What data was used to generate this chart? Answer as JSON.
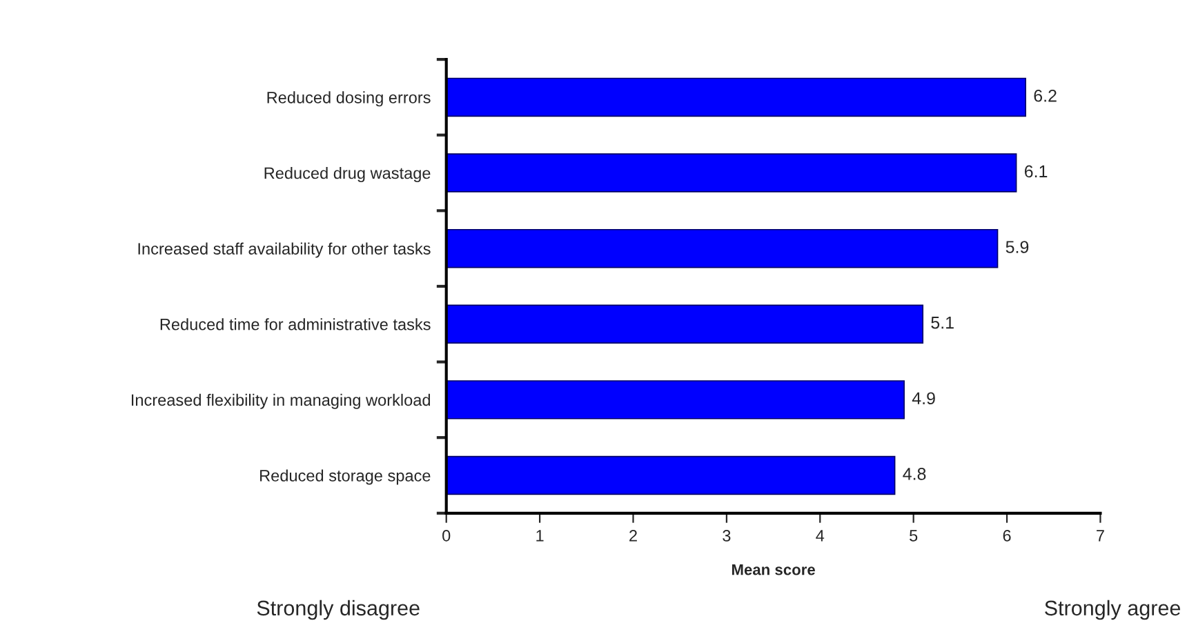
{
  "chart_data": {
    "type": "bar",
    "orientation": "horizontal",
    "xlabel": "Mean score",
    "categories": [
      "Reduced dosing errors",
      "Reduced drug wastage",
      "Increased staff availability for other tasks",
      "Reduced time for administrative tasks",
      "Increased flexibility in managing workload",
      "Reduced storage space"
    ],
    "values": [
      6.2,
      6.1,
      5.9,
      5.1,
      4.9,
      4.8
    ],
    "color": "#0000ff",
    "data_labels": true,
    "xlim": [
      0,
      7
    ],
    "xticks": [
      0,
      1,
      2,
      3,
      4,
      5,
      6,
      7
    ],
    "grid": false,
    "legend": false,
    "annotations": [
      "Strongly disagree",
      "Strongly agree"
    ]
  }
}
